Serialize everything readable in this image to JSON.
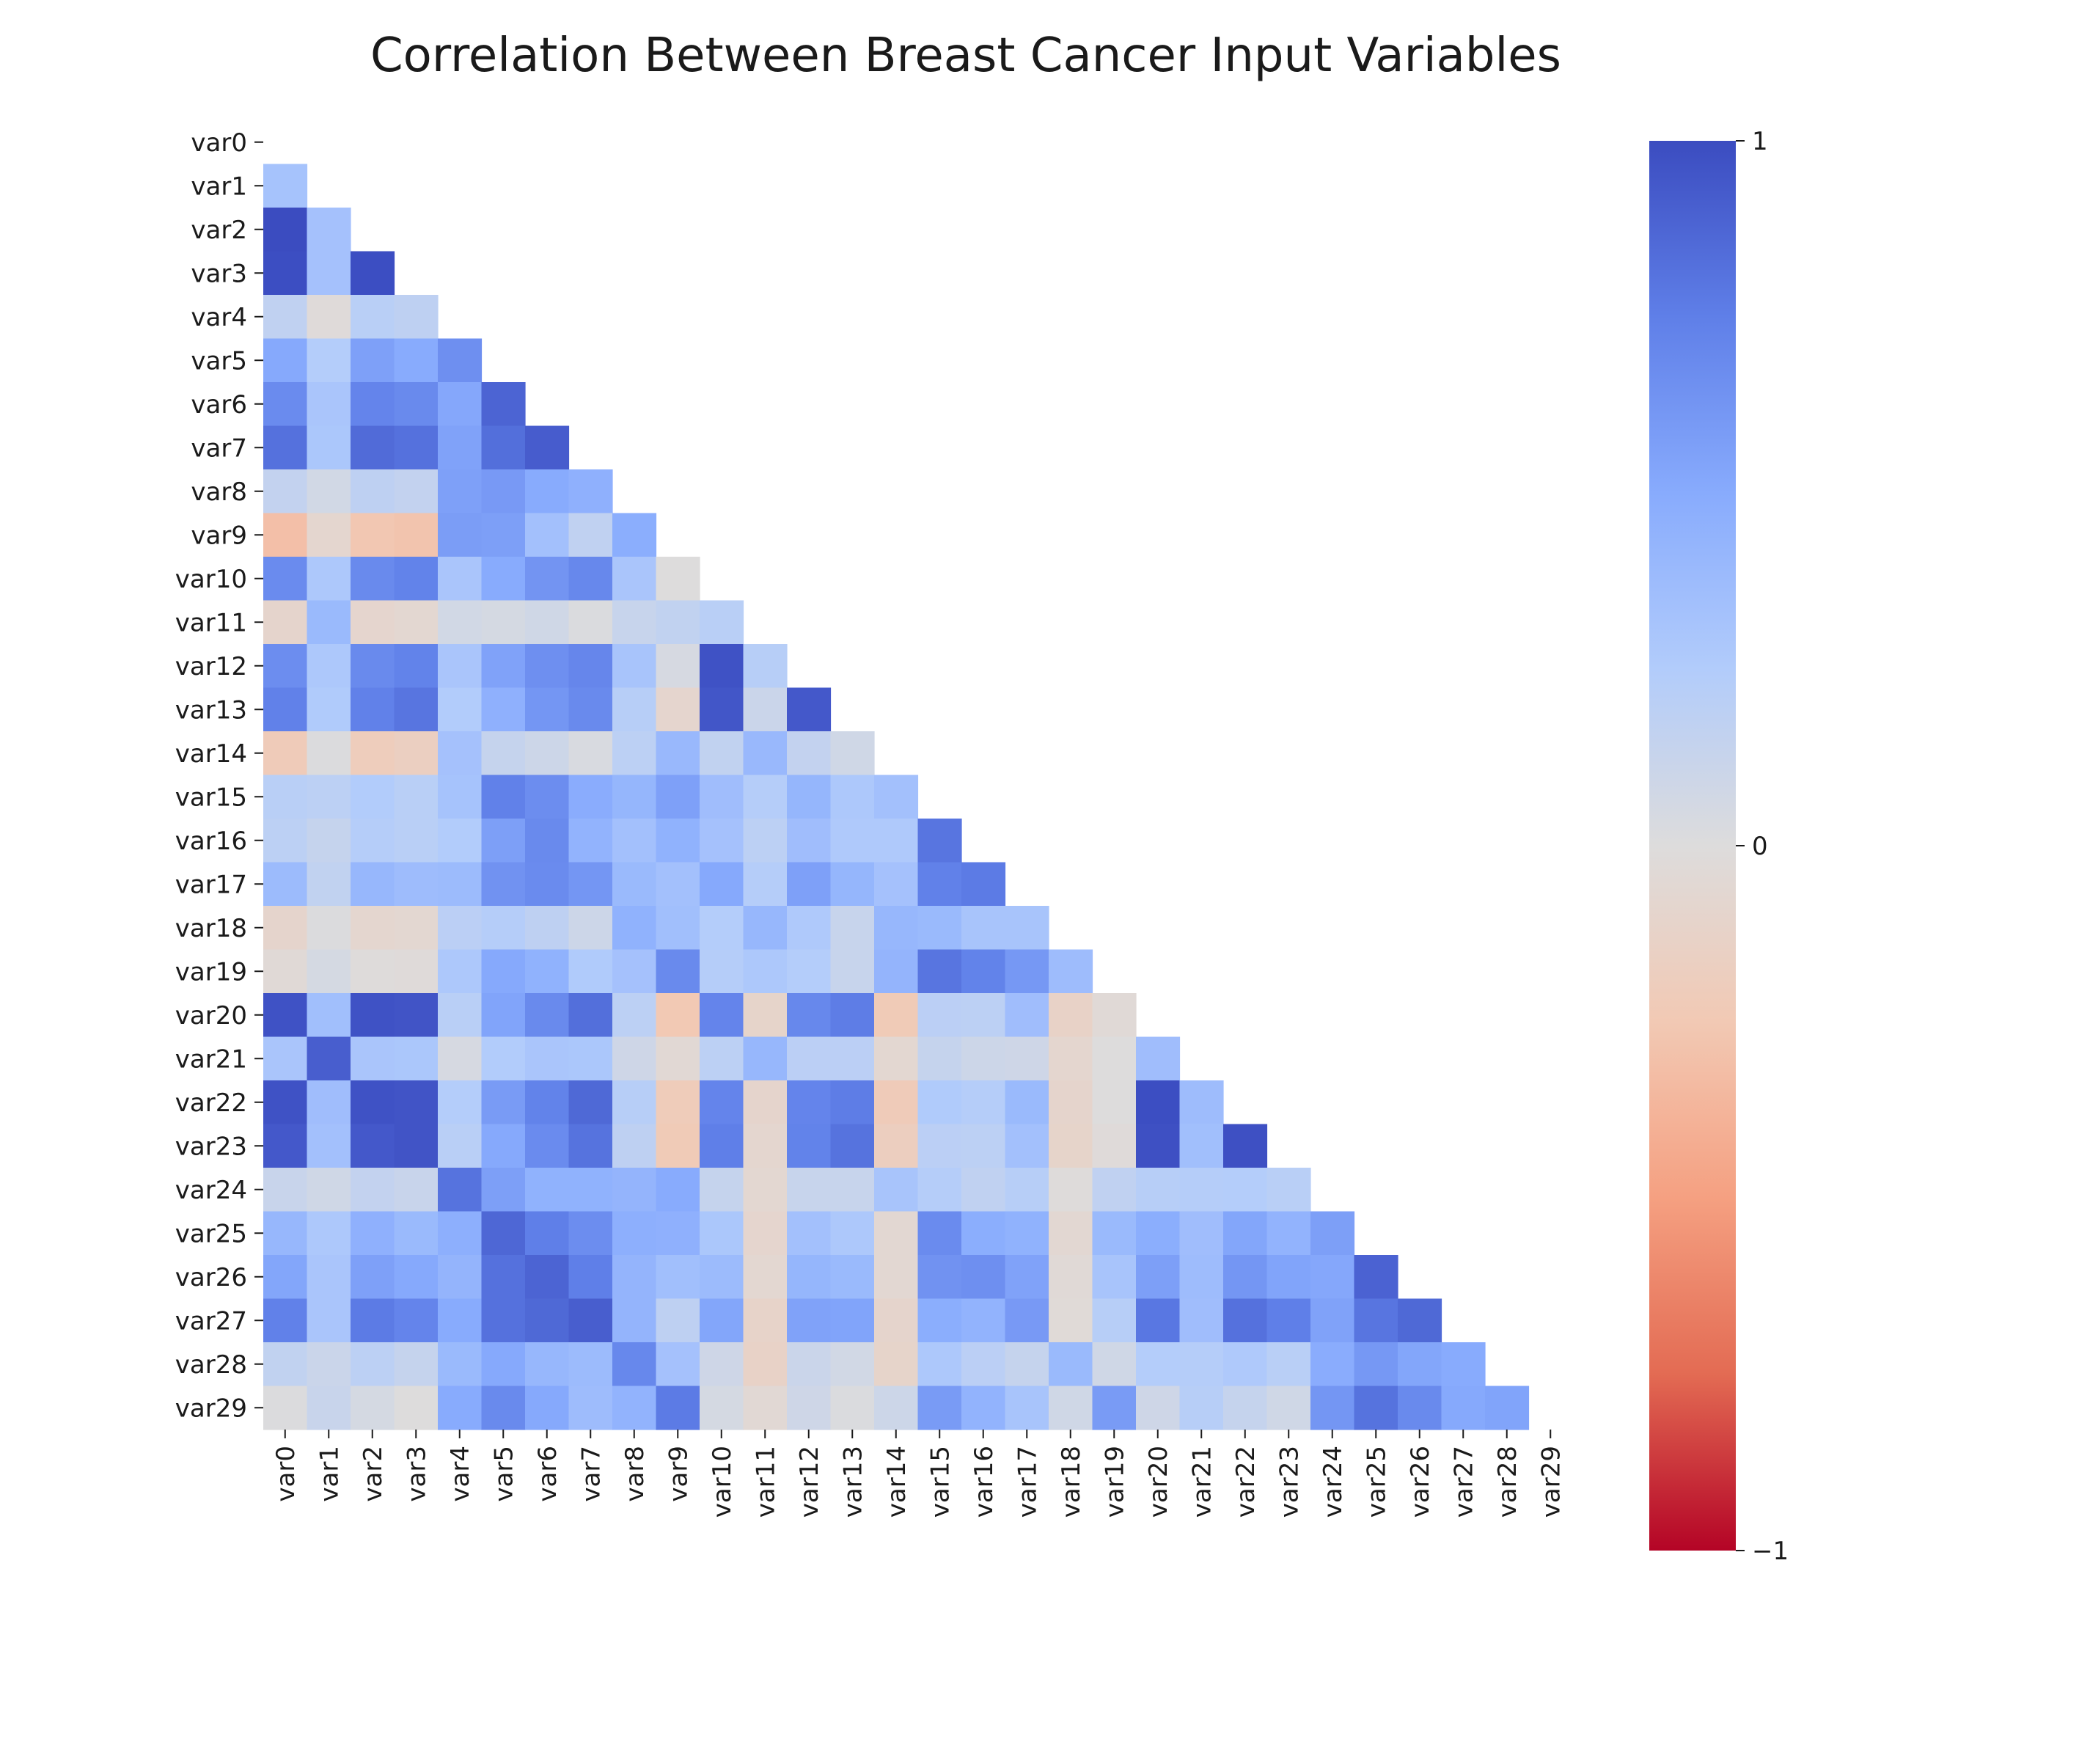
{
  "chart_data": {
    "type": "heatmap",
    "title": "Correlation Between Breast Cancer Input Variables",
    "mask": "upper-triangle-and-diagonal",
    "variables": [
      "var0",
      "var1",
      "var2",
      "var3",
      "var4",
      "var5",
      "var6",
      "var7",
      "var8",
      "var9",
      "var10",
      "var11",
      "var12",
      "var13",
      "var14",
      "var15",
      "var16",
      "var17",
      "var18",
      "var19",
      "var20",
      "var21",
      "var22",
      "var23",
      "var24",
      "var25",
      "var26",
      "var27",
      "var28",
      "var29"
    ],
    "values": [
      [],
      [
        0.32
      ],
      [
        1.0,
        0.33
      ],
      [
        0.99,
        0.33,
        0.99
      ],
      [
        0.17,
        -0.02,
        0.21,
        0.18
      ],
      [
        0.51,
        0.24,
        0.56,
        0.5,
        0.66
      ],
      [
        0.68,
        0.3,
        0.72,
        0.69,
        0.52,
        0.88
      ],
      [
        0.82,
        0.29,
        0.85,
        0.82,
        0.55,
        0.83,
        0.92
      ],
      [
        0.15,
        0.07,
        0.18,
        0.15,
        0.56,
        0.6,
        0.5,
        0.46
      ],
      [
        -0.31,
        -0.08,
        -0.26,
        -0.28,
        0.58,
        0.57,
        0.34,
        0.17,
        0.48
      ],
      [
        0.68,
        0.28,
        0.69,
        0.73,
        0.3,
        0.5,
        0.63,
        0.7,
        0.3,
        0.0
      ],
      [
        -0.1,
        0.39,
        -0.09,
        -0.07,
        0.07,
        0.05,
        0.08,
        0.02,
        0.13,
        0.16,
        0.21
      ],
      [
        0.67,
        0.28,
        0.69,
        0.73,
        0.3,
        0.55,
        0.66,
        0.71,
        0.31,
        0.04,
        0.97,
        0.22
      ],
      [
        0.74,
        0.26,
        0.74,
        0.8,
        0.25,
        0.46,
        0.62,
        0.69,
        0.22,
        -0.09,
        0.95,
        0.11,
        0.94
      ],
      [
        -0.22,
        0.01,
        -0.2,
        -0.17,
        0.33,
        0.14,
        0.1,
        0.03,
        0.19,
        0.4,
        0.16,
        0.4,
        0.15,
        0.08
      ],
      [
        0.21,
        0.19,
        0.25,
        0.21,
        0.32,
        0.74,
        0.67,
        0.49,
        0.42,
        0.56,
        0.36,
        0.23,
        0.42,
        0.28,
        0.34
      ],
      [
        0.19,
        0.14,
        0.23,
        0.21,
        0.25,
        0.57,
        0.69,
        0.44,
        0.34,
        0.45,
        0.33,
        0.19,
        0.36,
        0.27,
        0.27,
        0.8
      ],
      [
        0.38,
        0.16,
        0.41,
        0.37,
        0.38,
        0.64,
        0.68,
        0.62,
        0.39,
        0.34,
        0.51,
        0.23,
        0.56,
        0.42,
        0.33,
        0.74,
        0.77
      ],
      [
        -0.1,
        0.01,
        -0.08,
        -0.07,
        0.2,
        0.23,
        0.18,
        0.1,
        0.45,
        0.35,
        0.24,
        0.41,
        0.27,
        0.13,
        0.41,
        0.39,
        0.31,
        0.31
      ],
      [
        -0.04,
        0.05,
        -0.01,
        -0.02,
        0.28,
        0.51,
        0.45,
        0.26,
        0.33,
        0.69,
        0.23,
        0.28,
        0.24,
        0.13,
        0.43,
        0.8,
        0.73,
        0.61,
        0.37
      ],
      [
        0.97,
        0.35,
        0.97,
        0.96,
        0.21,
        0.54,
        0.69,
        0.83,
        0.19,
        -0.25,
        0.72,
        -0.11,
        0.7,
        0.76,
        -0.23,
        0.2,
        0.19,
        0.36,
        -0.13,
        -0.04
      ],
      [
        0.3,
        0.91,
        0.3,
        0.29,
        0.04,
        0.25,
        0.3,
        0.29,
        0.09,
        -0.05,
        0.19,
        0.41,
        0.2,
        0.2,
        -0.07,
        0.14,
        0.1,
        0.09,
        -0.08,
        -0.0,
        0.36
      ],
      [
        0.97,
        0.36,
        0.97,
        0.96,
        0.24,
        0.59,
        0.73,
        0.86,
        0.22,
        -0.21,
        0.72,
        -0.1,
        0.72,
        0.76,
        -0.22,
        0.26,
        0.23,
        0.39,
        -0.1,
        -0.0,
        0.99,
        0.37
      ],
      [
        0.94,
        0.34,
        0.94,
        0.96,
        0.21,
        0.51,
        0.68,
        0.81,
        0.18,
        -0.23,
        0.75,
        -0.08,
        0.73,
        0.81,
        -0.18,
        0.2,
        0.19,
        0.34,
        -0.11,
        -0.02,
        0.98,
        0.35,
        0.98
      ],
      [
        0.12,
        0.08,
        0.15,
        0.12,
        0.81,
        0.57,
        0.45,
        0.45,
        0.43,
        0.5,
        0.14,
        -0.07,
        0.13,
        0.13,
        0.31,
        0.23,
        0.17,
        0.22,
        -0.01,
        0.17,
        0.22,
        0.23,
        0.24,
        0.21
      ],
      [
        0.41,
        0.28,
        0.46,
        0.39,
        0.47,
        0.87,
        0.75,
        0.67,
        0.47,
        0.46,
        0.29,
        -0.09,
        0.34,
        0.28,
        -0.06,
        0.68,
        0.48,
        0.45,
        -0.06,
        0.39,
        0.48,
        0.36,
        0.53,
        0.44,
        0.57
      ],
      [
        0.53,
        0.3,
        0.56,
        0.51,
        0.43,
        0.82,
        0.88,
        0.75,
        0.43,
        0.35,
        0.38,
        -0.07,
        0.42,
        0.39,
        -0.06,
        0.64,
        0.66,
        0.55,
        -0.04,
        0.31,
        0.57,
        0.37,
        0.62,
        0.54,
        0.52,
        0.89
      ],
      [
        0.74,
        0.3,
        0.77,
        0.72,
        0.5,
        0.82,
        0.86,
        0.91,
        0.43,
        0.18,
        0.53,
        -0.12,
        0.55,
        0.54,
        -0.1,
        0.48,
        0.44,
        0.6,
        -0.03,
        0.22,
        0.79,
        0.36,
        0.82,
        0.75,
        0.55,
        0.8,
        0.86
      ],
      [
        0.16,
        0.11,
        0.19,
        0.14,
        0.39,
        0.51,
        0.41,
        0.38,
        0.7,
        0.33,
        0.09,
        -0.13,
        0.11,
        0.07,
        -0.11,
        0.28,
        0.2,
        0.14,
        0.39,
        0.08,
        0.24,
        0.23,
        0.27,
        0.21,
        0.49,
        0.61,
        0.53,
        0.5
      ],
      [
        0.01,
        0.12,
        0.05,
        0.0,
        0.5,
        0.69,
        0.51,
        0.37,
        0.44,
        0.77,
        0.05,
        -0.05,
        0.09,
        0.02,
        0.1,
        0.59,
        0.44,
        0.31,
        0.08,
        0.59,
        0.09,
        0.22,
        0.14,
        0.08,
        0.62,
        0.81,
        0.69,
        0.51,
        0.54
      ]
    ],
    "colorbar": {
      "colormap": "coolwarm",
      "vmin": -1,
      "vmax": 1,
      "ticks": [
        1,
        0,
        -1
      ],
      "tick_labels": [
        "1",
        "0",
        "−1"
      ],
      "colors": {
        "low": "#b40426",
        "mid": "#dddcdc",
        "high": "#3b4cc0"
      }
    }
  }
}
